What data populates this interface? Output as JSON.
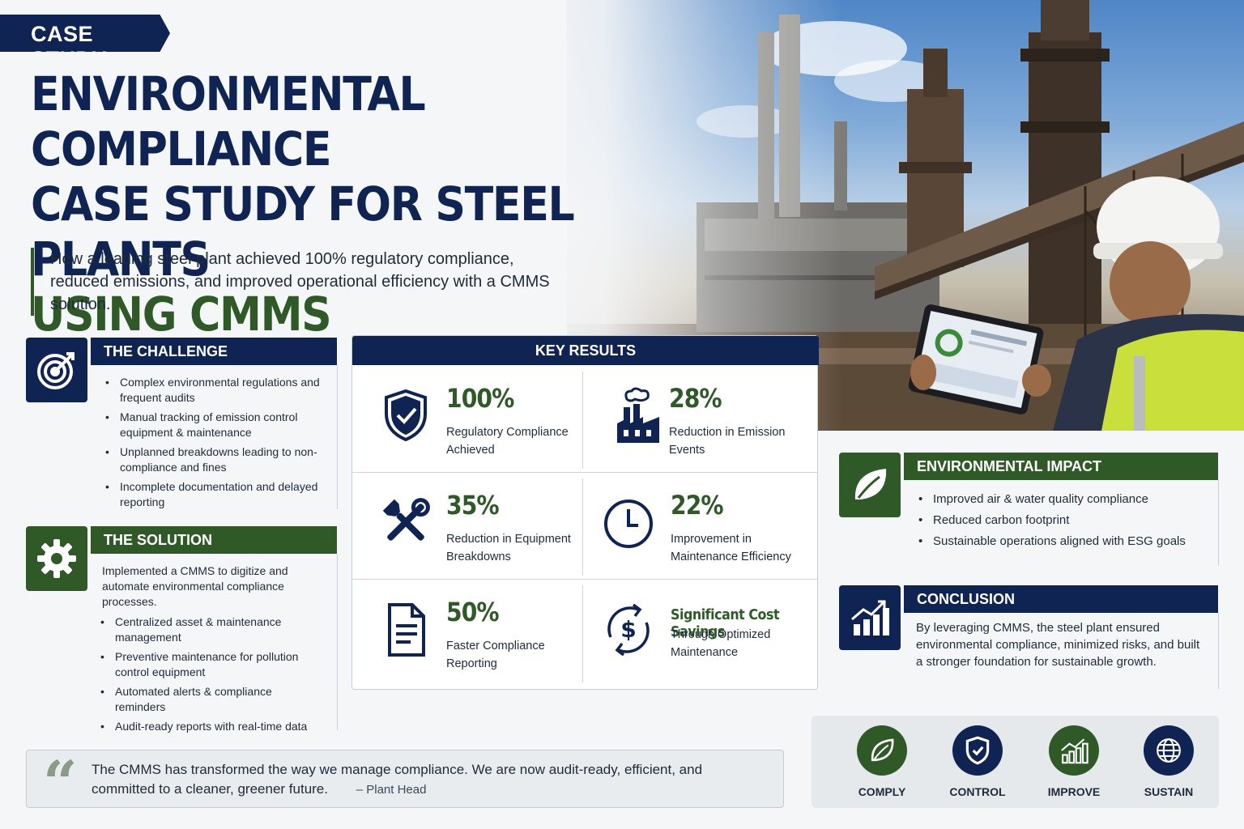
{
  "header": {
    "tag": "CASE STUDY",
    "title_line1": "ENVIRONMENTAL COMPLIANCE",
    "title_line2": "CASE STUDY FOR STEEL PLANTS",
    "title_line3": "USING CMMS",
    "subtitle": "How a leading steel plant achieved 100% regulatory compliance, reduced emissions, and improved operational efficiency with a CMMS solution."
  },
  "challenge": {
    "heading": "THE CHALLENGE",
    "icon": "target-icon",
    "items": [
      "Complex environmental regulations and frequent audits",
      "Manual tracking of emission control equipment & maintenance",
      "Unplanned breakdowns leading to non-compliance and fines",
      "Incomplete documentation and delayed reporting"
    ]
  },
  "solution": {
    "heading": "THE SOLUTION",
    "icon": "gear-icon",
    "intro": "Implemented a CMMS to digitize and automate environmental compliance processes.",
    "items": [
      "Centralized asset & maintenance management",
      "Preventive maintenance for pollution control equipment",
      "Automated alerts & compliance reminders",
      "Audit-ready reports with real-time data"
    ]
  },
  "key_results": {
    "heading": "KEY RESULTS",
    "cells": [
      {
        "value": "100%",
        "label": "Regulatory Compliance Achieved",
        "icon": "shield-check-icon"
      },
      {
        "value": "28%",
        "label": "Reduction in Emission Events",
        "icon": "factory-icon"
      },
      {
        "value": "35%",
        "label": "Reduction in Equipment Breakdowns",
        "icon": "tools-icon"
      },
      {
        "value": "22%",
        "label": "Improvement in Maintenance Efficiency",
        "icon": "clock-icon"
      },
      {
        "value": "50%",
        "label": "Faster Compliance Reporting",
        "icon": "document-icon"
      },
      {
        "value": "Significant Cost Savings",
        "label": "Through Optimized Maintenance",
        "icon": "dollar-cycle-icon"
      }
    ]
  },
  "environmental_impact": {
    "heading": "ENVIRONMENTAL IMPACT",
    "icon": "leaf-icon",
    "items": [
      "Improved air & water quality compliance",
      "Reduced carbon footprint",
      "Sustainable operations aligned with ESG goals"
    ]
  },
  "conclusion": {
    "heading": "CONCLUSION",
    "icon": "growth-chart-icon",
    "text": "By leveraging CMMS, the steel plant ensured environmental compliance, minimized risks, and built a stronger foundation for sustainable growth."
  },
  "quote": {
    "mark": "“",
    "text": "The CMMS has transformed the way we manage compliance. We are now audit-ready, efficient, and committed to a cleaner, greener future.",
    "author": "– Plant Head"
  },
  "pillars": [
    {
      "label": "COMPLY",
      "icon": "leaf-icon",
      "color": "#2f5a28"
    },
    {
      "label": "CONTROL",
      "icon": "shield-check-icon",
      "color": "#0f2452"
    },
    {
      "label": "IMPROVE",
      "icon": "growth-chart-icon",
      "color": "#2f5a28"
    },
    {
      "label": "SUSTAIN",
      "icon": "globe-icon",
      "color": "#0f2452"
    }
  ],
  "colors": {
    "navy": "#0f2452",
    "green": "#2f5a28",
    "background": "#f5f6f7"
  }
}
